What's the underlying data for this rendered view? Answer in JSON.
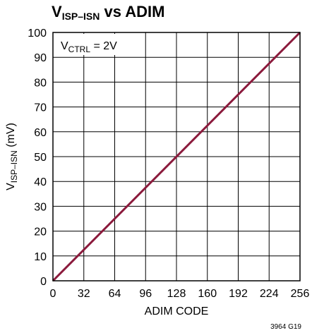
{
  "chart_data": {
    "type": "line",
    "title": {
      "main": "V",
      "sub": "ISP–ISN",
      "rest": " vs ADIM"
    },
    "xlabel": "ADIM CODE",
    "ylabel": {
      "main": "V",
      "sub": "ISP–ISN",
      "rest": " (mV)"
    },
    "xlim": [
      0,
      256
    ],
    "ylim": [
      0,
      100
    ],
    "xticks": [
      0,
      32,
      64,
      96,
      128,
      160,
      192,
      224,
      256
    ],
    "yticks": [
      0,
      10,
      20,
      30,
      40,
      50,
      60,
      70,
      80,
      90,
      100
    ],
    "grid": true,
    "annotation": {
      "main": "V",
      "sub": "CTRL",
      "rest": " = 2V"
    },
    "figure_id": "3964 G19",
    "series": [
      {
        "color": "#8b1a3c",
        "x": [
          0,
          256
        ],
        "y": [
          0,
          100
        ]
      }
    ]
  }
}
